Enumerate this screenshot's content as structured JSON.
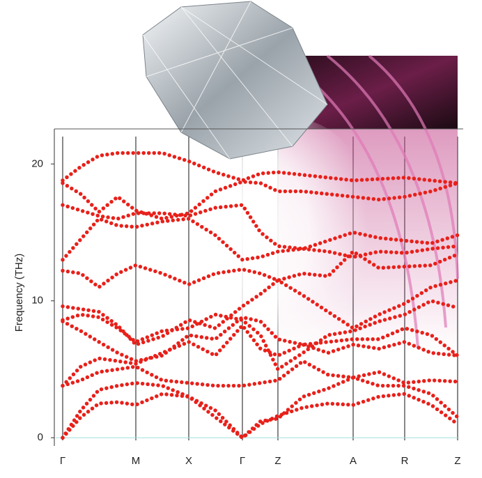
{
  "chart_data": {
    "type": "line",
    "y_label": "Frequency (THz)",
    "color": "#e8201a",
    "xlim": [
      0,
      567
    ],
    "xticks": [
      {
        "value": 0,
        "label": "Γ"
      },
      {
        "value": 105,
        "label": "M"
      },
      {
        "value": 181,
        "label": "X"
      },
      {
        "value": 258,
        "label": "Γ"
      },
      {
        "value": 309,
        "label": "Z"
      },
      {
        "value": 417,
        "label": "A"
      },
      {
        "value": 491,
        "label": "R"
      },
      {
        "value": 567,
        "label": "Z"
      }
    ],
    "ylim": [
      -0.6,
      22.0
    ],
    "yticks": [
      0,
      10,
      20
    ],
    "x": [
      0,
      26,
      52,
      79,
      105,
      143,
      181,
      219,
      258,
      284,
      309,
      345,
      381,
      417,
      454,
      491,
      529,
      567
    ],
    "series": [
      {
        "values": [
          0,
          1.5,
          2.5,
          2.6,
          2.4,
          3.2,
          3.0,
          1.5,
          0,
          1.0,
          1.6,
          2.2,
          2.5,
          2.4,
          3.0,
          3.2,
          2.4,
          1.0
        ]
      },
      {
        "values": [
          0,
          2.0,
          3.5,
          3.8,
          4.0,
          3.8,
          3.0,
          2.0,
          0,
          1.2,
          1.4,
          3.0,
          3.6,
          4.4,
          3.8,
          3.8,
          3.2,
          1.5
        ]
      },
      {
        "values": [
          3.8,
          4.2,
          4.8,
          5.0,
          5.2,
          4.2,
          4.0,
          3.8,
          3.8,
          4.0,
          4.2,
          5.6,
          4.6,
          4.4,
          4.8,
          4.0,
          4.2,
          4.1
        ]
      },
      {
        "values": [
          3.8,
          5.2,
          5.8,
          5.6,
          5.4,
          6.2,
          7.0,
          6.0,
          8.2,
          6.5,
          6.0,
          6.8,
          6.2,
          6.8,
          6.5,
          7.0,
          6.2,
          6.0
        ]
      },
      {
        "values": [
          8.5,
          7.8,
          7.0,
          6.2,
          5.6,
          6.0,
          7.5,
          7.2,
          8.8,
          8.5,
          7.2,
          6.8,
          7.0,
          7.2,
          7.2,
          8.0,
          7.5,
          6.0
        ]
      },
      {
        "values": [
          8.6,
          9.0,
          8.8,
          8.0,
          7.0,
          7.8,
          8.0,
          9.0,
          8.6,
          7.5,
          5.0,
          6.2,
          7.5,
          7.8,
          8.5,
          9.0,
          10.0,
          9.5
        ]
      },
      {
        "values": [
          9.6,
          9.4,
          9.2,
          8.2,
          6.8,
          7.4,
          8.6,
          8.0,
          9.6,
          10.5,
          11.5,
          10.4,
          9.2,
          8.0,
          9.0,
          9.8,
          11.0,
          11.5
        ]
      },
      {
        "values": [
          12.2,
          12.0,
          11.0,
          12.0,
          12.6,
          12.0,
          11.2,
          12.0,
          12.3,
          12.0,
          11.5,
          12.0,
          11.8,
          13.6,
          12.4,
          12.5,
          12.6,
          13.4
        ]
      },
      {
        "values": [
          13.0,
          14.5,
          16.0,
          15.5,
          15.4,
          15.8,
          16.0,
          14.8,
          13.0,
          13.2,
          13.6,
          13.8,
          13.6,
          13.2,
          13.6,
          13.5,
          13.8,
          14.0
        ]
      },
      {
        "values": [
          17.0,
          16.6,
          16.2,
          16.0,
          16.4,
          16.4,
          16.2,
          16.8,
          17.0,
          15.0,
          14.0,
          13.8,
          14.4,
          15.0,
          14.6,
          14.4,
          14.2,
          14.8
        ]
      },
      {
        "values": [
          18.6,
          17.8,
          16.5,
          17.6,
          16.6,
          16.0,
          16.4,
          18.0,
          18.7,
          18.6,
          18.0,
          18.0,
          17.8,
          17.6,
          17.4,
          17.6,
          18.0,
          18.6
        ]
      },
      {
        "values": [
          18.8,
          19.8,
          20.6,
          20.8,
          20.8,
          20.8,
          20.2,
          19.4,
          18.8,
          19.3,
          19.4,
          19.2,
          19.0,
          18.8,
          18.9,
          19.0,
          18.8,
          18.6
        ]
      }
    ]
  }
}
